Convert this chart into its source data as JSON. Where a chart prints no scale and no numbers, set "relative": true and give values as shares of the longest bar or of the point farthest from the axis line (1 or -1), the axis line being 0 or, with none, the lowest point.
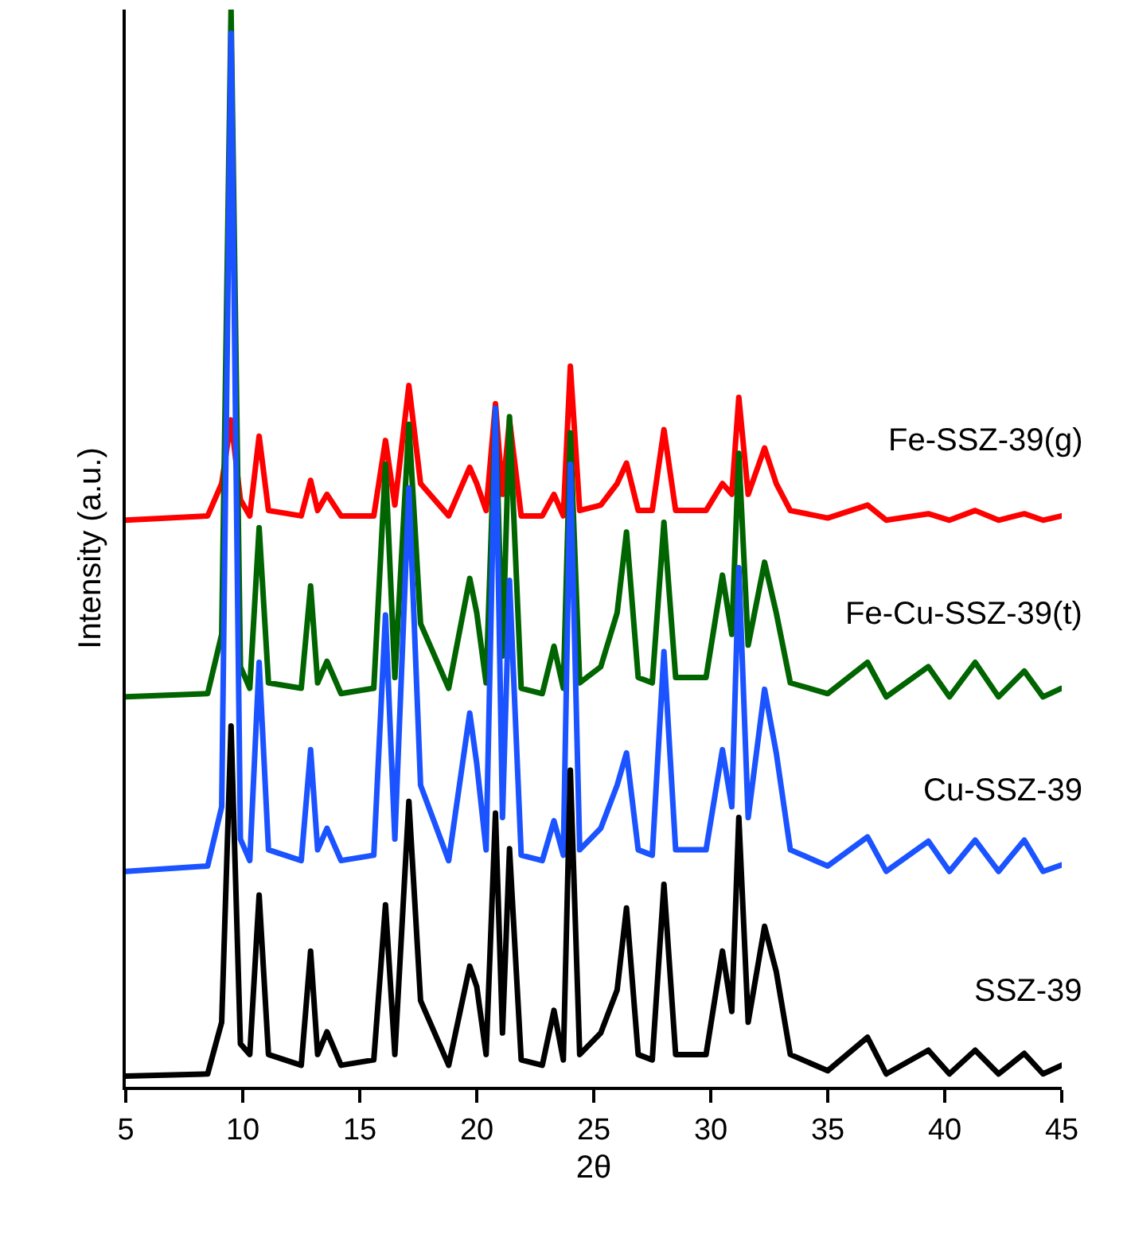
{
  "chart_data": {
    "type": "line",
    "relative": true,
    "xlabel": "2θ",
    "ylabel": "Intensity (a.u.)",
    "xlim": [
      5,
      45
    ],
    "xticks": [
      5,
      10,
      15,
      20,
      25,
      30,
      35,
      40,
      45
    ],
    "grid": false,
    "legend": false,
    "marker": "none",
    "line_style": "solid",
    "x": [
      5,
      8.5,
      9.1,
      9.5,
      9.9,
      10.3,
      10.7,
      11.1,
      12.5,
      12.9,
      13.2,
      13.6,
      14.2,
      15.6,
      16.1,
      16.5,
      17.1,
      17.6,
      18.8,
      19.7,
      20.0,
      20.4,
      20.8,
      21.1,
      21.4,
      21.9,
      22.8,
      23.3,
      23.7,
      24.0,
      24.4,
      25.3,
      26.0,
      26.4,
      26.9,
      27.5,
      28.0,
      28.5,
      29.8,
      30.5,
      30.9,
      31.2,
      31.6,
      32.3,
      32.8,
      33.4,
      35,
      36.7,
      37.5,
      39.3,
      40.2,
      41.3,
      42.3,
      43.4,
      44.2,
      45
    ],
    "series": [
      {
        "name": "Fe-SSZ-39(g)",
        "color": "#ff0000",
        "values": [
          0.526,
          0.53,
          0.56,
          0.619,
          0.545,
          0.53,
          0.604,
          0.535,
          0.53,
          0.563,
          0.535,
          0.55,
          0.53,
          0.53,
          0.6,
          0.54,
          0.651,
          0.56,
          0.53,
          0.575,
          0.56,
          0.535,
          0.634,
          0.55,
          0.619,
          0.53,
          0.53,
          0.55,
          0.53,
          0.669,
          0.535,
          0.54,
          0.56,
          0.579,
          0.535,
          0.535,
          0.61,
          0.535,
          0.535,
          0.56,
          0.55,
          0.64,
          0.55,
          0.593,
          0.56,
          0.535,
          0.528,
          0.54,
          0.526,
          0.532,
          0.526,
          0.535,
          0.526,
          0.532,
          0.526,
          0.53
        ]
      },
      {
        "name": "Fe-Cu-SSZ-39(t)",
        "color": "#006400",
        "values": [
          0.362,
          0.365,
          0.42,
          1.0,
          0.39,
          0.37,
          0.519,
          0.375,
          0.37,
          0.465,
          0.375,
          0.395,
          0.365,
          0.37,
          0.578,
          0.38,
          0.615,
          0.43,
          0.37,
          0.472,
          0.44,
          0.375,
          0.63,
          0.4,
          0.622,
          0.37,
          0.365,
          0.409,
          0.37,
          0.607,
          0.375,
          0.39,
          0.44,
          0.515,
          0.38,
          0.375,
          0.524,
          0.38,
          0.38,
          0.475,
          0.42,
          0.588,
          0.41,
          0.487,
          0.44,
          0.375,
          0.365,
          0.394,
          0.362,
          0.39,
          0.362,
          0.394,
          0.362,
          0.386,
          0.362,
          0.37
        ]
      },
      {
        "name": "Cu-SSZ-39",
        "color": "#1a53ff",
        "values": [
          0.2,
          0.205,
          0.26,
          0.978,
          0.23,
          0.21,
          0.394,
          0.22,
          0.21,
          0.313,
          0.22,
          0.24,
          0.21,
          0.215,
          0.438,
          0.23,
          0.556,
          0.28,
          0.21,
          0.347,
          0.3,
          0.22,
          0.63,
          0.25,
          0.47,
          0.215,
          0.21,
          0.247,
          0.215,
          0.578,
          0.22,
          0.24,
          0.28,
          0.31,
          0.22,
          0.215,
          0.404,
          0.22,
          0.22,
          0.313,
          0.26,
          0.482,
          0.25,
          0.369,
          0.31,
          0.22,
          0.205,
          0.232,
          0.2,
          0.228,
          0.2,
          0.229,
          0.2,
          0.229,
          0.2,
          0.206
        ]
      },
      {
        "name": "SSZ-39",
        "color": "#000000",
        "values": [
          0.01,
          0.012,
          0.06,
          0.335,
          0.04,
          0.03,
          0.178,
          0.03,
          0.02,
          0.126,
          0.03,
          0.051,
          0.02,
          0.025,
          0.169,
          0.03,
          0.265,
          0.08,
          0.02,
          0.112,
          0.093,
          0.03,
          0.254,
          0.05,
          0.221,
          0.025,
          0.02,
          0.071,
          0.025,
          0.294,
          0.03,
          0.05,
          0.09,
          0.166,
          0.03,
          0.025,
          0.188,
          0.03,
          0.03,
          0.126,
          0.07,
          0.25,
          0.06,
          0.149,
          0.107,
          0.03,
          0.015,
          0.046,
          0.012,
          0.034,
          0.012,
          0.034,
          0.012,
          0.031,
          0.012,
          0.02
        ]
      }
    ]
  }
}
